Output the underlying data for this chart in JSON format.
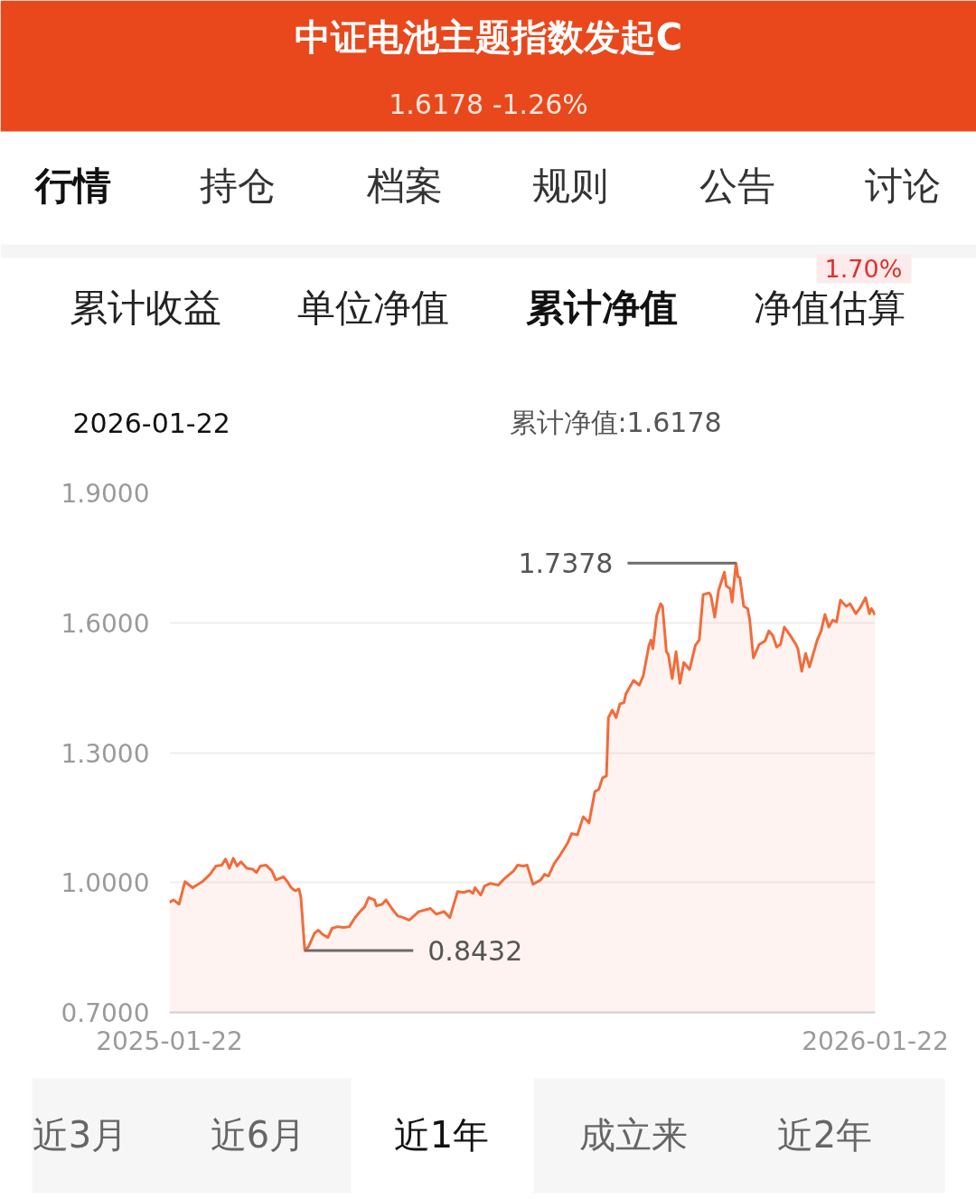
{
  "chart_data": {
    "type": "area",
    "title": "中证电池主题指数发起C",
    "subtitle": "1.6178 -1.26%",
    "annotations": [
      "行情",
      "持仓",
      "档案",
      "规则",
      "公告",
      "讨论",
      "累计收益",
      "单位净值",
      "累计净值",
      "净值估算",
      "1.70%",
      "2026-01-22",
      "累计净值:1.6178",
      {
        "text": "1.7378",
        "x": "2025-11-11",
        "y": 1.7378
      },
      {
        "text": "0.8432",
        "x": "2025-04-02",
        "y": 0.8432
      },
      "近3月",
      "近6月",
      "近1年",
      "成立来",
      "近2年"
    ],
    "x": [
      "2025-01-22",
      "2025-01-24",
      "2025-01-27",
      "2025-01-30",
      "2025-02-03",
      "2025-02-08",
      "2025-02-12",
      "2025-02-15",
      "2025-02-18",
      "2025-02-20",
      "2025-02-22",
      "2025-02-24",
      "2025-02-26",
      "2025-02-28",
      "2025-03-03",
      "2025-03-06",
      "2025-03-08",
      "2025-03-10",
      "2025-03-13",
      "2025-03-16",
      "2025-03-18",
      "2025-03-22",
      "2025-03-24",
      "2025-03-26",
      "2025-03-28",
      "2025-03-30",
      "2025-03-31",
      "2025-04-02",
      "2025-04-04",
      "2025-04-07",
      "2025-04-09",
      "2025-04-11",
      "2025-04-14",
      "2025-04-16",
      "2025-04-19",
      "2025-04-22",
      "2025-04-25",
      "2025-04-28",
      "2025-05-01",
      "2025-05-03",
      "2025-05-05",
      "2025-05-08",
      "2025-05-09",
      "2025-05-12",
      "2025-05-14",
      "2025-05-17",
      "2025-05-20",
      "2025-05-23",
      "2025-05-26",
      "2025-05-29",
      "2025-05-31",
      "2025-06-06",
      "2025-06-09",
      "2025-06-13",
      "2025-06-16",
      "2025-06-20",
      "2025-06-23",
      "2025-06-26",
      "2025-06-28",
      "2025-06-29",
      "2025-07-02",
      "2025-07-04",
      "2025-07-07",
      "2025-07-11",
      "2025-07-14",
      "2025-07-19",
      "2025-07-21",
      "2025-07-24",
      "2025-07-26",
      "2025-07-29",
      "2025-08-02",
      "2025-08-04",
      "2025-08-06",
      "2025-08-09",
      "2025-08-12",
      "2025-08-16",
      "2025-08-18",
      "2025-08-21",
      "2025-08-24",
      "2025-08-27",
      "2025-08-30",
      "2025-09-01",
      "2025-09-03",
      "2025-09-05",
      "2025-09-06",
      "2025-09-08",
      "2025-09-10",
      "2025-09-12",
      "2025-09-14",
      "2025-09-15",
      "2025-09-19",
      "2025-09-22",
      "2025-09-24",
      "2025-09-27",
      "2025-09-28",
      "2025-09-29",
      "2025-10-01",
      "2025-10-03",
      "2025-10-04",
      "2025-10-06",
      "2025-10-07",
      "2025-10-09",
      "2025-10-11",
      "2025-10-13",
      "2025-10-15",
      "2025-10-18",
      "2025-10-21",
      "2025-10-23",
      "2025-10-25",
      "2025-10-28",
      "2025-10-29",
      "2025-10-31",
      "2025-11-02",
      "2025-11-05",
      "2025-11-06",
      "2025-11-08",
      "2025-11-09",
      "2025-11-11",
      "2025-11-12",
      "2025-11-13",
      "2025-11-15",
      "2025-11-17",
      "2025-11-18",
      "2025-11-20",
      "2025-11-23",
      "2025-11-26",
      "2025-11-28",
      "2025-11-30",
      "2025-12-02",
      "2025-12-04",
      "2025-12-06",
      "2025-12-09",
      "2025-12-12",
      "2025-12-13",
      "2025-12-15",
      "2025-12-17",
      "2025-12-19",
      "2025-12-23",
      "2025-12-25",
      "2025-12-27",
      "2025-12-29",
      "2025-12-31",
      "2026-01-02",
      "2026-01-04",
      "2026-01-07",
      "2026-01-09",
      "2026-01-12",
      "2026-01-14",
      "2026-01-17",
      "2026-01-19",
      "2026-01-20",
      "2026-01-22"
    ],
    "values": [
      0.954,
      0.96,
      0.95,
      1.002,
      0.988,
      1.002,
      1.019,
      1.038,
      1.04,
      1.054,
      1.033,
      1.056,
      1.038,
      1.048,
      1.033,
      1.031,
      1.023,
      1.038,
      1.04,
      1.027,
      1.006,
      1.013,
      1.002,
      0.988,
      0.981,
      0.985,
      0.965,
      0.8432,
      0.852,
      0.883,
      0.89,
      0.881,
      0.873,
      0.894,
      0.898,
      0.896,
      0.898,
      0.919,
      0.935,
      0.944,
      0.965,
      0.96,
      0.946,
      0.95,
      0.96,
      0.94,
      0.923,
      0.919,
      0.913,
      0.925,
      0.933,
      0.94,
      0.927,
      0.933,
      0.919,
      0.979,
      0.977,
      0.981,
      0.975,
      0.988,
      0.971,
      0.992,
      0.998,
      0.994,
      1.008,
      1.027,
      1.04,
      1.038,
      1.04,
      0.996,
      1.006,
      1.019,
      1.015,
      1.044,
      1.063,
      1.092,
      1.113,
      1.11,
      1.152,
      1.138,
      1.21,
      1.215,
      1.242,
      1.246,
      1.381,
      1.398,
      1.381,
      1.413,
      1.415,
      1.435,
      1.467,
      1.456,
      1.477,
      1.548,
      1.56,
      1.54,
      1.617,
      1.644,
      1.638,
      1.533,
      1.527,
      1.471,
      1.533,
      1.46,
      1.508,
      1.492,
      1.548,
      1.56,
      1.665,
      1.669,
      1.663,
      1.613,
      1.675,
      1.717,
      1.685,
      1.679,
      1.648,
      1.7378,
      1.706,
      1.704,
      1.638,
      1.633,
      1.61,
      1.519,
      1.55,
      1.558,
      1.581,
      1.571,
      1.544,
      1.55,
      1.59,
      1.571,
      1.55,
      1.54,
      1.488,
      1.529,
      1.498,
      1.56,
      1.581,
      1.619,
      1.59,
      1.606,
      1.602,
      1.652,
      1.638,
      1.644,
      1.621,
      1.633,
      1.658,
      1.621,
      1.633,
      1.6178
    ],
    "color": "#f26b3a",
    "xlim": [
      "2025-01-22",
      "2026-01-22"
    ],
    "xticks": [
      "2025-01-22",
      "2026-01-22"
    ],
    "ylim": [
      0.7,
      1.9
    ],
    "yticks": [
      {
        "value": 0.7,
        "label": "0.7000"
      },
      {
        "value": 1.0,
        "label": "1.0000"
      },
      {
        "value": 1.3,
        "label": "1.3000"
      },
      {
        "value": 1.6,
        "label": "1.6000"
      },
      {
        "value": 1.9,
        "label": "1.9000"
      }
    ],
    "grid": "y"
  }
}
